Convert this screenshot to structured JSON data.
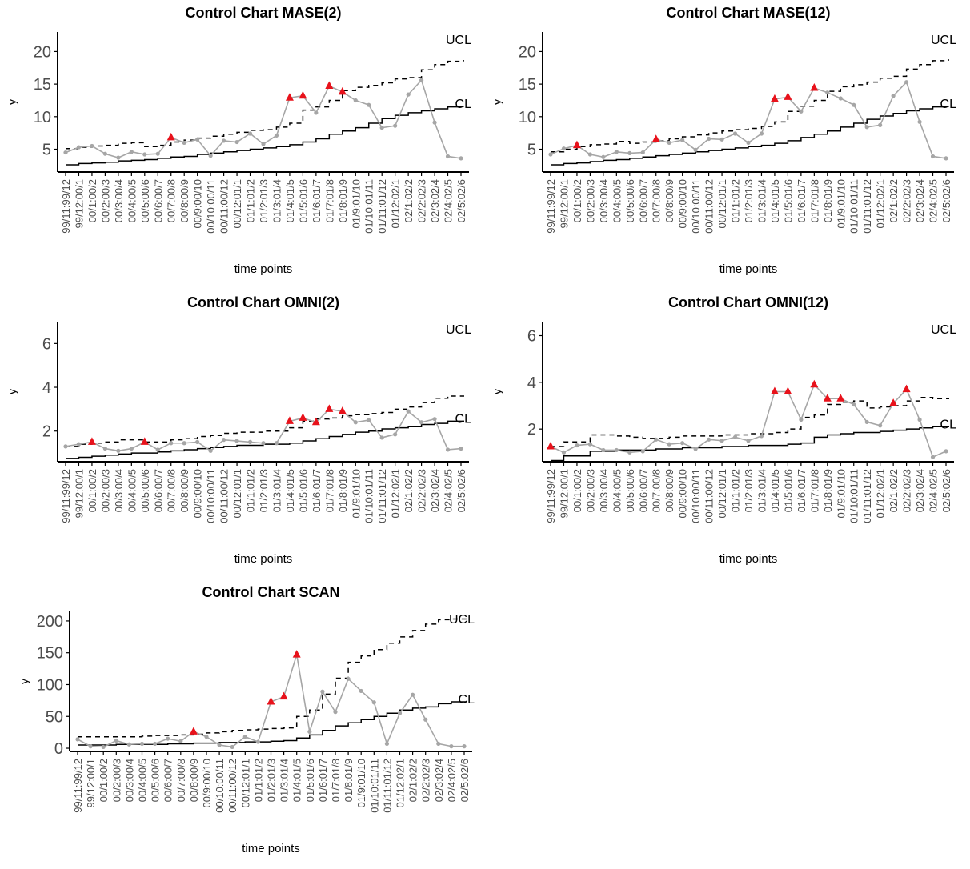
{
  "x_tick_labels": [
    "99/11:99/12",
    "99/12:00/1",
    "00/1:00/2",
    "00/2:00/3",
    "00/3:00/4",
    "00/4:00/5",
    "00/5:00/6",
    "00/6:00/7",
    "00/7:00/8",
    "00/8:00/9",
    "00/9:00/10",
    "00/10:00/11",
    "00/11:00/12",
    "00/12:01/1",
    "01/1:01/2",
    "01/2:01/3",
    "01/3:01/4",
    "01/4:01/5",
    "01/5:01/6",
    "01/6:01/7",
    "01/7:01/8",
    "01/8:01/9",
    "01/9:01/10",
    "01/10:01/11",
    "01/11:01/12",
    "01/12:02/1",
    "02/1:02/2",
    "02/2:02/3",
    "02/3:02/4",
    "02/4:02/5",
    "02/5:02/6"
  ],
  "colors": {
    "observed": "#a6a6a6",
    "alarm": "#e8121b",
    "limits": "#000000"
  },
  "chart_data": [
    {
      "type": "line",
      "title": "Control Chart MASE(2)",
      "xlabel": "time points",
      "ylabel": "y",
      "ylim": [
        1.5,
        23
      ],
      "yticks": [
        5,
        10,
        15,
        20
      ],
      "line_labels": {
        "ucl": "UCL",
        "cl": "CL"
      },
      "x_labels": [
        "99/11:99/12",
        "99/12:00/1",
        "00/1:00/2",
        "00/2:00/3",
        "00/3:00/4",
        "00/4:00/5",
        "00/5:00/6",
        "00/6:00/7",
        "00/7:00/8",
        "00/8:00/9",
        "00/9:00/10",
        "00/10:00/11",
        "00/11:00/12",
        "00/12:01/1",
        "01/1:01/2",
        "01/2:01/3",
        "01/3:01/4",
        "01/4:01/5",
        "01/5:01/6",
        "01/6:01/7",
        "01/7:01/8",
        "01/8:01/9",
        "01/9:01/10",
        "01/10:01/11",
        "01/11:01/12",
        "01/12:02/1",
        "02/1:02/2",
        "02/2:02/3",
        "02/3:02/4",
        "02/4:02/5",
        "02/5:02/6"
      ],
      "observed": [
        4.5,
        5.3,
        5.5,
        4.3,
        3.7,
        4.6,
        4.2,
        4.3,
        6.8,
        6.0,
        6.5,
        4.0,
        6.3,
        6.1,
        7.4,
        5.8,
        7.1,
        12.9,
        13.2,
        10.6,
        14.7,
        13.8,
        12.5,
        11.8,
        8.3,
        8.6,
        13.4,
        15.6,
        9.1,
        3.9,
        3.6
      ],
      "cl": [
        2.6,
        2.8,
        2.9,
        3.0,
        3.2,
        3.3,
        3.4,
        3.6,
        3.8,
        3.9,
        4.2,
        4.4,
        4.6,
        4.8,
        5.0,
        5.2,
        5.4,
        5.7,
        6.1,
        6.6,
        7.3,
        7.8,
        8.3,
        9.0,
        9.7,
        10.2,
        10.6,
        10.9,
        11.2,
        11.5,
        11.6
      ],
      "ucl": [
        5.1,
        5.3,
        5.5,
        5.6,
        5.9,
        6.0,
        5.4,
        5.6,
        6.1,
        6.4,
        6.7,
        7.0,
        7.3,
        7.6,
        7.9,
        8.0,
        8.4,
        9.0,
        11.0,
        11.5,
        12.5,
        14.0,
        14.5,
        14.8,
        15.2,
        15.8,
        16.0,
        17.2,
        18.0,
        18.5,
        18.6
      ],
      "alarms": [
        8,
        17,
        18,
        20,
        21
      ]
    },
    {
      "type": "line",
      "title": "Control Chart MASE(12)",
      "xlabel": "time points",
      "ylabel": "y",
      "ylim": [
        1.5,
        23
      ],
      "yticks": [
        5,
        10,
        15,
        20
      ],
      "line_labels": {
        "ucl": "UCL",
        "cl": "CL"
      },
      "x_labels": [
        "99/11:99/12",
        "99/12:00/1",
        "00/1:00/2",
        "00/2:00/3",
        "00/3:00/4",
        "00/4:00/5",
        "00/5:00/6",
        "00/6:00/7",
        "00/7:00/8",
        "00/8:00/9",
        "00/9:00/10",
        "00/10:00/11",
        "00/11:00/12",
        "00/12:01/1",
        "01/1:01/2",
        "01/2:01/3",
        "01/3:01/4",
        "01/4:01/5",
        "01/5:01/6",
        "01/6:01/7",
        "01/7:01/8",
        "01/8:01/9",
        "01/9:01/10",
        "01/10:01/11",
        "01/11:01/12",
        "01/12:02/1",
        "02/1:02/2",
        "02/2:02/3",
        "02/3:02/4",
        "02/4:02/5",
        "02/5:02/6"
      ],
      "observed": [
        4.2,
        5.1,
        5.6,
        4.2,
        3.8,
        4.6,
        4.4,
        4.5,
        6.5,
        6.0,
        6.4,
        4.9,
        6.6,
        6.5,
        7.4,
        6.0,
        7.4,
        12.7,
        13.0,
        10.8,
        14.4,
        13.7,
        12.8,
        11.8,
        8.4,
        8.7,
        13.2,
        15.3,
        9.2,
        3.9,
        3.6
      ],
      "cl": [
        2.6,
        2.8,
        2.9,
        3.1,
        3.3,
        3.4,
        3.6,
        3.8,
        4.0,
        4.2,
        4.4,
        4.6,
        4.8,
        5.0,
        5.2,
        5.4,
        5.6,
        5.9,
        6.3,
        6.8,
        7.3,
        7.8,
        8.4,
        9.0,
        9.6,
        10.1,
        10.5,
        10.9,
        11.2,
        11.5,
        11.6
      ],
      "ucl": [
        4.6,
        5.0,
        5.4,
        5.7,
        5.8,
        6.2,
        5.9,
        6.1,
        6.3,
        6.6,
        6.9,
        7.2,
        7.5,
        7.8,
        8.0,
        8.2,
        8.5,
        9.2,
        10.8,
        11.6,
        12.5,
        13.9,
        14.6,
        14.9,
        15.3,
        15.9,
        16.2,
        17.3,
        18.0,
        18.6,
        18.7
      ],
      "alarms": [
        2,
        8,
        17,
        18,
        20
      ]
    },
    {
      "type": "line",
      "title": "Control Chart OMNI(2)",
      "xlabel": "time points",
      "ylabel": "y",
      "ylim": [
        0.6,
        7
      ],
      "yticks": [
        2,
        4,
        6
      ],
      "line_labels": {
        "ucl": "UCL",
        "cl": "CL"
      },
      "x_labels": [
        "99/11:99/12",
        "99/12:00/1",
        "00/1:00/2",
        "00/2:00/3",
        "00/3:00/4",
        "00/4:00/5",
        "00/5:00/6",
        "00/6:00/7",
        "00/7:00/8",
        "00/8:00/9",
        "00/9:00/10",
        "00/10:00/11",
        "00/11:00/12",
        "00/12:01/1",
        "01/1:01/2",
        "01/2:01/3",
        "01/3:01/4",
        "01/4:01/5",
        "01/5:01/6",
        "01/6:01/7",
        "01/7:01/8",
        "01/8:01/9",
        "01/9:01/10",
        "01/10:01/11",
        "01/11:01/12",
        "01/12:02/1",
        "02/1:02/2",
        "02/2:02/3",
        "02/3:02/4",
        "02/4:02/5",
        "02/5:02/6"
      ],
      "observed": [
        1.3,
        1.4,
        1.5,
        1.2,
        1.1,
        1.2,
        1.5,
        1.15,
        1.45,
        1.45,
        1.5,
        1.1,
        1.6,
        1.55,
        1.5,
        1.45,
        1.45,
        2.45,
        2.6,
        2.4,
        3.0,
        2.9,
        2.4,
        2.5,
        1.7,
        1.85,
        2.9,
        2.4,
        2.55,
        1.15,
        1.2
      ],
      "cl": [
        0.75,
        0.8,
        0.85,
        0.9,
        0.95,
        1.0,
        1.0,
        1.05,
        1.1,
        1.15,
        1.2,
        1.25,
        1.3,
        1.35,
        1.35,
        1.4,
        1.4,
        1.45,
        1.55,
        1.65,
        1.75,
        1.85,
        1.95,
        2.0,
        2.1,
        2.15,
        2.2,
        2.3,
        2.35,
        2.45,
        2.45
      ],
      "ucl": [
        1.3,
        1.4,
        1.45,
        1.5,
        1.6,
        1.6,
        1.5,
        1.5,
        1.6,
        1.65,
        1.75,
        1.8,
        1.9,
        1.95,
        1.95,
        2.0,
        2.0,
        2.15,
        2.45,
        2.55,
        2.6,
        2.7,
        2.75,
        2.8,
        2.85,
        3.0,
        3.1,
        3.3,
        3.5,
        3.6,
        3.6
      ],
      "alarms": [
        2,
        6,
        17,
        18,
        19,
        20,
        21
      ]
    },
    {
      "type": "line",
      "title": "Control Chart OMNI(12)",
      "xlabel": "time points",
      "ylabel": "y",
      "ylim": [
        0.6,
        6.6
      ],
      "yticks": [
        2,
        4,
        6
      ],
      "line_labels": {
        "ucl": "UCL",
        "cl": "CL"
      },
      "x_labels": [
        "99/11:99/12",
        "99/12:00/1",
        "00/1:00/2",
        "00/2:00/3",
        "00/3:00/4",
        "00/4:00/5",
        "00/5:00/6",
        "00/6:00/7",
        "00/7:00/8",
        "00/8:00/9",
        "00/9:00/10",
        "00/10:00/11",
        "00/11:00/12",
        "00/12:01/1",
        "01/1:01/2",
        "01/2:01/3",
        "01/3:01/4",
        "01/4:01/5",
        "01/5:01/6",
        "01/6:01/7",
        "01/7:01/8",
        "01/8:01/9",
        "01/9:01/10",
        "01/10:01/11",
        "01/11:01/12",
        "01/12:02/1",
        "02/1:02/2",
        "02/2:02/3",
        "02/3:02/4",
        "02/4:02/5",
        "02/5:02/6"
      ],
      "observed": [
        1.25,
        1.0,
        1.3,
        1.35,
        1.1,
        1.1,
        1.0,
        1.05,
        1.55,
        1.35,
        1.4,
        1.15,
        1.55,
        1.5,
        1.65,
        1.5,
        1.7,
        3.6,
        3.6,
        2.4,
        3.9,
        3.3,
        3.3,
        3.05,
        2.3,
        2.15,
        3.1,
        3.7,
        2.4,
        0.8,
        1.05
      ],
      "cl": [
        0.65,
        0.85,
        0.85,
        1.05,
        1.05,
        1.1,
        1.1,
        1.1,
        1.15,
        1.15,
        1.2,
        1.2,
        1.2,
        1.25,
        1.25,
        1.3,
        1.3,
        1.3,
        1.35,
        1.4,
        1.65,
        1.75,
        1.8,
        1.85,
        1.85,
        1.9,
        1.95,
        2.0,
        2.05,
        2.1,
        2.1
      ],
      "ucl": [
        1.25,
        1.45,
        1.45,
        1.75,
        1.75,
        1.7,
        1.65,
        1.6,
        1.6,
        1.65,
        1.7,
        1.7,
        1.7,
        1.75,
        1.75,
        1.8,
        1.8,
        1.85,
        2.0,
        2.5,
        2.6,
        3.05,
        3.15,
        3.2,
        2.9,
        2.95,
        3.0,
        3.2,
        3.35,
        3.3,
        3.3
      ],
      "alarms": [
        0,
        17,
        18,
        20,
        21,
        22,
        26,
        27
      ]
    },
    {
      "type": "line",
      "title": "Control Chart SCAN",
      "xlabel": "time points",
      "ylabel": "y",
      "ylim": [
        -5,
        215
      ],
      "yticks": [
        0,
        50,
        100,
        150,
        200
      ],
      "line_labels": {
        "ucl": "UCL",
        "cl": "CL"
      },
      "x_labels": [
        "99/11:99/12",
        "99/12:00/1",
        "00/1:00/2",
        "00/2:00/3",
        "00/3:00/4",
        "00/4:00/5",
        "00/5:00/6",
        "00/6:00/7",
        "00/7:00/8",
        "00/8:00/9",
        "00/9:00/10",
        "00/10:00/11",
        "00/11:00/12",
        "00/12:01/1",
        "01/1:01/2",
        "01/2:01/3",
        "01/3:01/4",
        "01/4:01/5",
        "01/5:01/6",
        "01/6:01/7",
        "01/7:01/8",
        "01/8:01/9",
        "01/9:01/10",
        "01/10:01/11",
        "01/11:01/12",
        "01/12:02/1",
        "02/1:02/2",
        "02/2:02/3",
        "02/3:02/4",
        "02/4:02/5",
        "02/5:02/6"
      ],
      "observed": [
        14,
        3,
        2,
        12,
        6,
        7,
        7,
        15,
        11,
        26,
        18,
        5,
        2,
        18,
        10,
        73,
        81,
        147,
        26,
        89,
        57,
        109,
        90,
        72,
        7,
        55,
        84,
        45,
        7,
        3,
        3
      ],
      "cl": [
        5,
        5,
        5,
        6,
        6,
        6,
        6,
        7,
        7,
        8,
        8,
        9,
        9,
        10,
        10,
        11,
        12,
        16,
        21,
        28,
        35,
        40,
        45,
        50,
        55,
        60,
        63,
        65,
        70,
        73,
        73
      ],
      "ucl": [
        18,
        18,
        18,
        18,
        18,
        19,
        20,
        20,
        21,
        22,
        24,
        26,
        28,
        29,
        30,
        31,
        32,
        50,
        60,
        85,
        110,
        135,
        145,
        155,
        165,
        175,
        185,
        195,
        202,
        203,
        203
      ],
      "alarms": [
        9,
        15,
        16,
        17
      ]
    }
  ]
}
